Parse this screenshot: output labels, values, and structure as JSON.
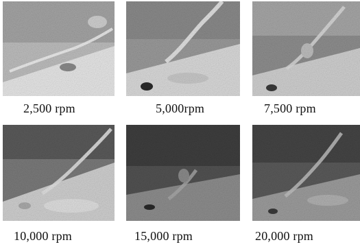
{
  "panels": [
    {
      "caption": "2,500  rpm"
    },
    {
      "caption": "5,000rpm"
    },
    {
      "caption": "7,500  rpm"
    },
    {
      "caption": "10,000  rpm"
    },
    {
      "caption": "15,000  rpm"
    },
    {
      "caption": "20,000  rpm"
    }
  ],
  "colors": {
    "background": "#ffffff",
    "caption_text": "#111111"
  }
}
